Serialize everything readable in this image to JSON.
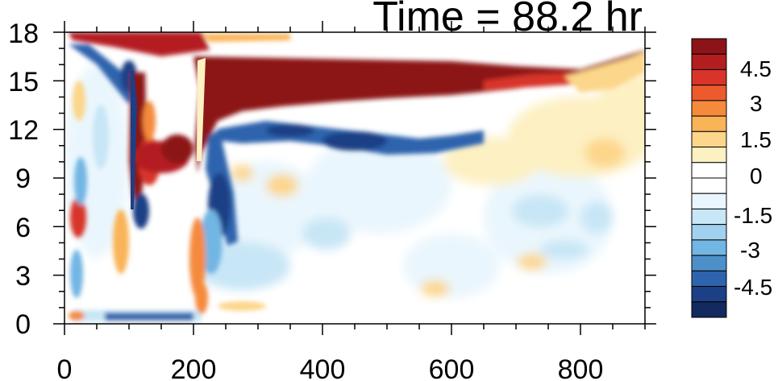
{
  "chart_data": {
    "type": "heatmap",
    "title": "Time = 88.2 hr",
    "xlabel": "",
    "ylabel": "",
    "xlim": [
      0,
      900
    ],
    "ylim": [
      0,
      18
    ],
    "x_ticks": [
      "0",
      "200",
      "400",
      "600",
      "800"
    ],
    "y_ticks": [
      "0",
      "3",
      "6",
      "9",
      "12",
      "15",
      "18"
    ],
    "colorbar": {
      "tick_labels": [
        "4.5",
        "3",
        "1.5",
        "0",
        "-1.5",
        "-3",
        "-4.5"
      ],
      "colors": [
        "#8c1418",
        "#b41d20",
        "#d8342a",
        "#ec5a2e",
        "#f58a3c",
        "#f9b458",
        "#fcd68a",
        "#fdf0c2",
        "#ffffff",
        "#ffffff",
        "#eaf6fd",
        "#c7e6f6",
        "#a0d2f0",
        "#72b6e3",
        "#4d90c9",
        "#2d64ad",
        "#1d3f85",
        "#132a5e"
      ]
    },
    "features": [
      {
        "name": "upper positive band",
        "x_range": [
          220,
          800
        ],
        "y_range": [
          13.5,
          17
        ],
        "value": 5
      },
      {
        "name": "upper negative band",
        "x_range": [
          260,
          620
        ],
        "y_range": [
          11,
          12.5
        ],
        "value": -3
      },
      {
        "name": "vertical positive front",
        "x_range": [
          100,
          120
        ],
        "y_range": [
          8,
          16
        ],
        "value": 4
      },
      {
        "name": "vertical negative front",
        "x_range": [
          200,
          260
        ],
        "y_range": [
          4,
          12
        ],
        "value": -4
      }
    ]
  },
  "colors": {
    "frame": "#000000",
    "background": "#ffffff"
  }
}
